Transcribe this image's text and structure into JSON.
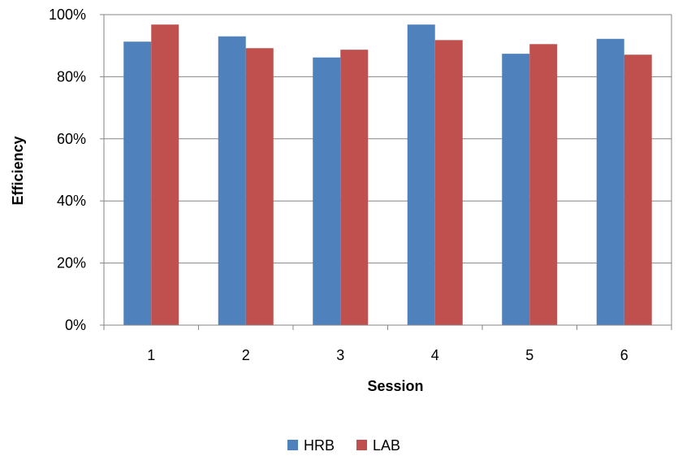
{
  "chart_data": {
    "type": "bar",
    "title": "",
    "xlabel": "Session",
    "ylabel": "Efficiency",
    "categories": [
      "1",
      "2",
      "3",
      "4",
      "5",
      "6"
    ],
    "series": [
      {
        "name": "HRB",
        "color": "#4F81BD",
        "values": [
          0.913,
          0.93,
          0.862,
          0.968,
          0.874,
          0.922
        ]
      },
      {
        "name": "LAB",
        "color": "#C0504D",
        "values": [
          0.968,
          0.892,
          0.887,
          0.918,
          0.905,
          0.871
        ]
      }
    ],
    "ylim": [
      0,
      1
    ],
    "yticks": [
      0,
      0.2,
      0.4,
      0.6,
      0.8,
      1.0
    ],
    "ytick_labels": [
      "0%",
      "20%",
      "40%",
      "60%",
      "80%",
      "100%"
    ],
    "grid": true,
    "legend_position": "bottom"
  }
}
